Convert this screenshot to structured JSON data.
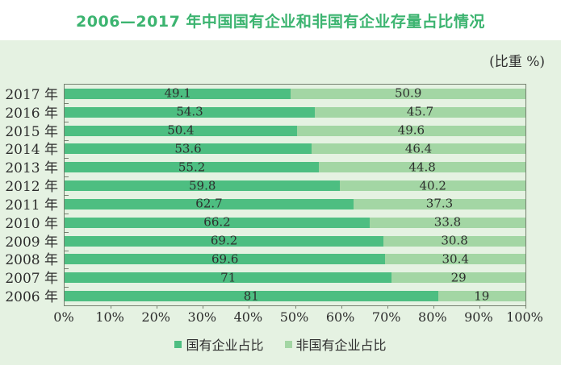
{
  "title": "2006—2017 年中国国有企业和非国有企业存量占比情况",
  "chart_data": {
    "type": "bar",
    "orientation": "horizontal",
    "stacked": true,
    "unit_label": "(比重 %)",
    "categories": [
      "2017 年",
      "2016 年",
      "2015 年",
      "2014 年",
      "2013 年",
      "2012 年",
      "2011 年",
      "2010 年",
      "2009 年",
      "2008 年",
      "2007 年",
      "2006 年"
    ],
    "series": [
      {
        "name": "国有企业占比",
        "color": "#4dbe81",
        "values": [
          49.1,
          54.3,
          50.4,
          53.6,
          55.2,
          59.8,
          62.7,
          66.2,
          69.2,
          69.6,
          71,
          81
        ]
      },
      {
        "name": "非国有企业占比",
        "color": "#a3d6a4",
        "values": [
          50.9,
          45.7,
          49.6,
          46.4,
          44.8,
          40.2,
          37.3,
          33.8,
          30.8,
          30.4,
          29,
          19
        ]
      }
    ],
    "x_axis": {
      "min": 0,
      "max": 100,
      "tick_labels": [
        "0%",
        "10%",
        "20%",
        "30%",
        "40%",
        "50%",
        "60%",
        "70%",
        "80%",
        "90%",
        "100%"
      ]
    },
    "legend_position": "bottom",
    "grid": false
  },
  "colors": {
    "title": "#3cb470",
    "panel_background": "#e5f2e2",
    "plot_border": "#75806f",
    "text": "#2e2e2e"
  }
}
